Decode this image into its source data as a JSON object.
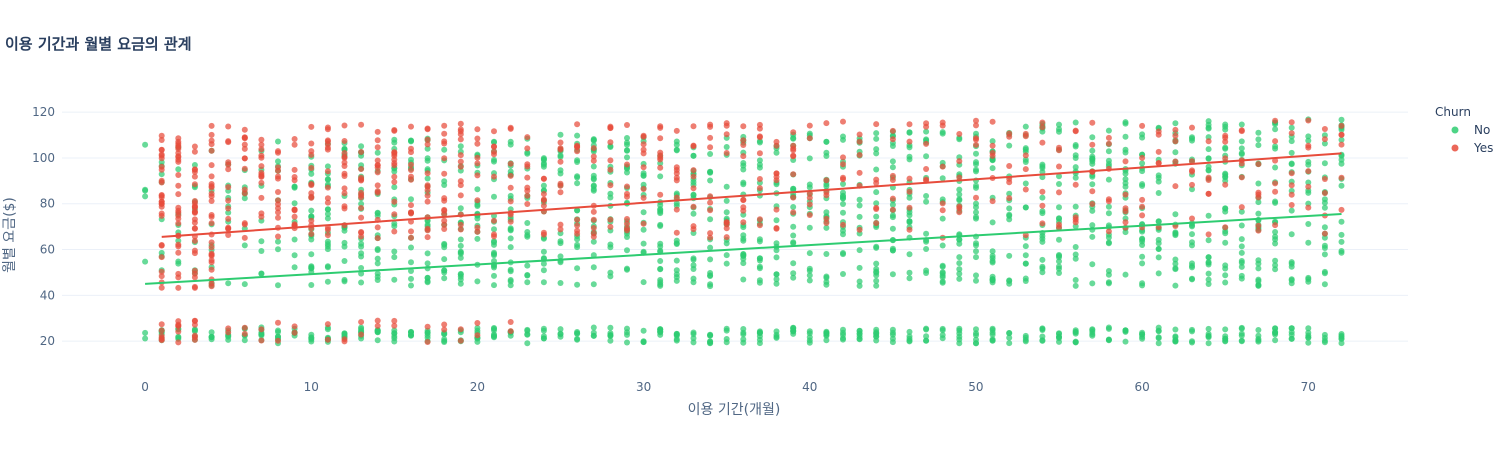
{
  "chart_data": {
    "type": "scatter",
    "title": "이용 기간과 월별 요금의 관계",
    "xlabel": "이용 기간(개월)",
    "ylabel": "월별 요금($)",
    "xlim": [
      -5,
      76
    ],
    "ylim": [
      10,
      124
    ],
    "x_ticks": [
      0,
      10,
      20,
      30,
      40,
      50,
      60,
      70
    ],
    "y_ticks": [
      20,
      40,
      60,
      80,
      100,
      120
    ],
    "grid": true,
    "legend": {
      "title": "Churn",
      "placement": "top-right"
    },
    "x_range": [
      0,
      72
    ],
    "y_range": [
      18.25,
      118.75
    ],
    "series": [
      {
        "name": "No",
        "color": "#2ecc71",
        "trendline": {
          "x": [
            0,
            72
          ],
          "y": [
            45,
            75.5
          ]
        },
        "points_description_only": false,
        "clusters": [
          {
            "x_min": 0,
            "x_max": 72,
            "y_min": 19,
            "y_max": 26,
            "density": "high"
          },
          {
            "x_min": 0,
            "x_max": 72,
            "y_min": 44,
            "y_max": 118,
            "density": "medium"
          }
        ]
      },
      {
        "name": "Yes",
        "color": "#e74c3c",
        "trendline": {
          "x": [
            1,
            72
          ],
          "y": [
            65.5,
            102
          ]
        },
        "clusters": [
          {
            "x_min": 1,
            "x_max": 72,
            "y_min": 19,
            "y_max": 26,
            "density": "low"
          },
          {
            "x_min": 1,
            "x_max": 72,
            "y_min": 68,
            "y_max": 118,
            "density": "high"
          }
        ]
      }
    ]
  }
}
